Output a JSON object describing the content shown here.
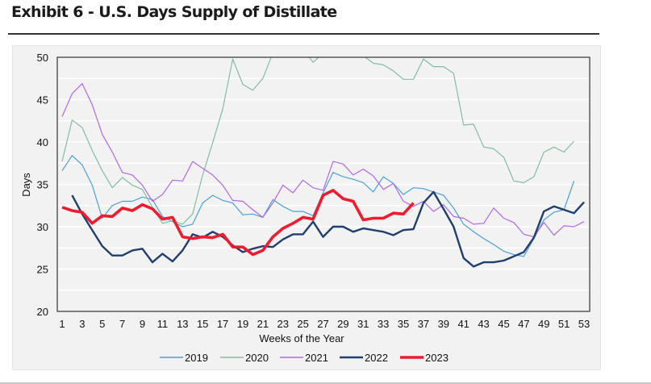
{
  "title": "Exhibit 6 - U.S. Days Supply of Distillate",
  "chart_data": {
    "type": "line",
    "title": "",
    "xlabel": "Weeks of the Year",
    "ylabel": "Days",
    "xlim": [
      1,
      53
    ],
    "ylim": [
      20,
      50
    ],
    "yticks": [
      20,
      25,
      30,
      35,
      40,
      45,
      50
    ],
    "xticks": [
      1,
      3,
      5,
      7,
      9,
      11,
      13,
      15,
      17,
      19,
      21,
      23,
      25,
      27,
      29,
      31,
      33,
      35,
      37,
      39,
      41,
      43,
      45,
      47,
      49,
      51,
      53
    ],
    "grid": true,
    "legend": "bottom",
    "series": [
      {
        "name": "2019",
        "color": "#4a9fd8",
        "width": 1.2,
        "x_start": 1,
        "values": [
          36.6,
          38.4,
          37.3,
          34.9,
          31.0,
          32.5,
          33.0,
          33.0,
          33.5,
          33.2,
          31.2,
          30.6,
          30.0,
          30.3,
          32.8,
          33.7,
          33.1,
          32.8,
          31.4,
          31.5,
          31.1,
          33.2,
          32.4,
          31.8,
          31.8,
          31.3,
          34.0,
          36.4,
          35.9,
          35.6,
          35.2,
          34.1,
          35.9,
          35.1,
          33.8,
          34.6,
          34.5,
          34.1,
          33.7,
          32.2,
          30.3,
          29.4,
          28.6,
          27.9,
          27.1,
          26.7,
          26.5,
          28.6,
          30.8,
          31.7,
          32.0,
          35.4
        ]
      },
      {
        "name": "2020",
        "color": "#7fbf9f",
        "width": 1.2,
        "x_start": 1,
        "values": [
          37.7,
          42.6,
          41.7,
          39.0,
          36.6,
          34.6,
          35.8,
          34.9,
          34.4,
          32.3,
          30.4,
          30.7,
          30.3,
          31.5,
          36.1,
          39.9,
          43.9,
          49.8,
          46.8,
          46.1,
          47.5,
          50.5,
          52.0,
          52.0,
          51.0,
          49.4,
          50.5,
          52.0,
          52.0,
          51.0,
          50.2,
          49.3,
          49.1,
          48.4,
          47.4,
          47.4,
          49.8,
          48.9,
          48.9,
          48.1,
          42.0,
          42.1,
          39.4,
          39.2,
          38.2,
          35.4,
          35.2,
          35.9,
          38.8,
          39.4,
          38.8,
          40.1
        ]
      },
      {
        "name": "2021",
        "color": "#b267e8",
        "width": 1.2,
        "x_start": 1,
        "values": [
          43.0,
          45.7,
          46.9,
          44.4,
          40.9,
          38.8,
          36.4,
          36.1,
          34.9,
          33.0,
          33.8,
          35.5,
          35.4,
          37.7,
          36.9,
          36.1,
          34.9,
          33.1,
          33.0,
          32.0,
          31.1,
          32.8,
          34.9,
          34.0,
          35.5,
          34.6,
          34.3,
          37.7,
          37.4,
          36.1,
          36.8,
          36.0,
          34.4,
          35.1,
          33.0,
          32.4,
          33.0,
          31.8,
          32.6,
          31.2,
          31.0,
          30.3,
          30.4,
          32.2,
          31.0,
          30.5,
          29.1,
          28.8,
          30.5,
          29.0,
          30.1,
          30.0,
          30.6
        ]
      },
      {
        "name": "2022",
        "color": "#1f3f6e",
        "width": 2.4,
        "x_start": 2,
        "values": [
          33.7,
          31.5,
          29.6,
          27.7,
          26.6,
          26.6,
          27.2,
          27.4,
          25.8,
          26.8,
          25.9,
          27.2,
          29.1,
          28.7,
          29.4,
          28.8,
          27.8,
          27.0,
          27.4,
          27.7,
          27.6,
          28.5,
          29.1,
          29.1,
          30.6,
          28.8,
          30.0,
          30.0,
          29.4,
          29.8,
          29.6,
          29.4,
          29.0,
          29.6,
          29.7,
          32.8,
          34.1,
          32.1,
          30.0,
          26.3,
          25.3,
          25.8,
          25.8,
          26.0,
          26.5,
          27.0,
          28.7,
          31.8,
          32.4,
          32.0,
          31.6,
          32.9
        ]
      },
      {
        "name": "2023",
        "color": "#ee1c2e",
        "width": 3.6,
        "x_start": 1,
        "values": [
          32.3,
          31.9,
          31.7,
          30.4,
          31.3,
          31.2,
          32.2,
          31.9,
          32.6,
          32.1,
          30.9,
          31.1,
          28.8,
          28.6,
          28.8,
          28.7,
          29.1,
          27.6,
          27.6,
          26.7,
          27.2,
          28.8,
          29.8,
          30.4,
          31.1,
          30.9,
          33.7,
          34.3,
          33.3,
          33.0,
          30.8,
          31.0,
          31.0,
          31.6,
          31.5,
          32.8
        ]
      }
    ]
  }
}
